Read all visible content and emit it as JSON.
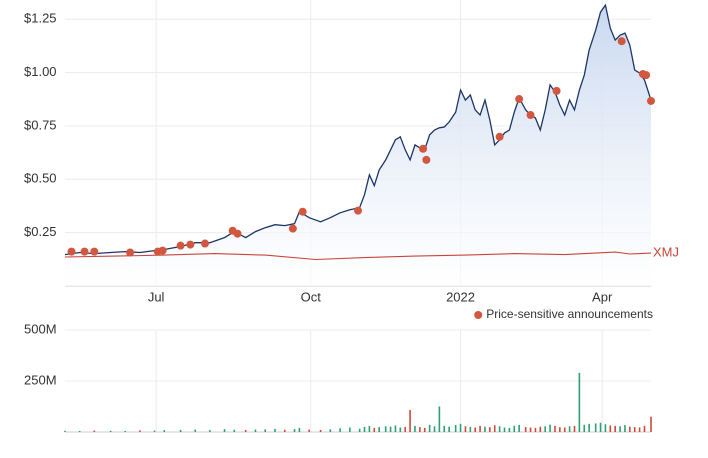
{
  "chart_data": [
    {
      "type": "line",
      "xlim": [
        0,
        360
      ],
      "xticks": [
        {
          "value": 56,
          "label": "Jul"
        },
        {
          "value": 151,
          "label": "Oct"
        },
        {
          "value": 243,
          "label": "2022"
        },
        {
          "value": 330,
          "label": "Apr"
        }
      ],
      "ylim": [
        0,
        1.34
      ],
      "yticks": [
        {
          "value": 0.25,
          "label": "$0.25"
        },
        {
          "value": 0.5,
          "label": "$0.50"
        },
        {
          "value": 0.75,
          "label": "$0.75"
        },
        {
          "value": 1.0,
          "label": "$1.00"
        },
        {
          "value": 1.25,
          "label": "$1.25"
        }
      ],
      "grid": true,
      "legend": "bottom-right",
      "series": [
        {
          "type": "area",
          "color": "#1d3566",
          "fill": "#c6d6ef",
          "x": [
            0,
            9,
            18,
            28,
            37,
            46,
            55,
            61,
            71,
            80,
            89,
            98,
            104,
            111,
            117,
            123,
            129,
            135,
            141,
            144,
            150,
            157,
            163,
            169,
            175,
            181,
            184,
            187,
            190,
            193,
            197,
            200,
            203,
            206,
            209,
            212,
            215,
            218,
            221,
            224,
            227,
            230,
            233,
            236,
            240,
            243,
            246,
            249,
            252,
            255,
            258,
            261,
            264,
            267,
            270,
            273,
            276,
            279,
            283,
            286,
            289,
            292,
            295,
            298,
            301,
            304,
            307,
            310,
            313,
            316,
            319,
            322,
            326,
            329,
            332,
            335,
            338,
            341,
            344,
            347,
            350,
            353,
            356,
            360
          ],
          "values": [
            0.147,
            0.157,
            0.152,
            0.157,
            0.161,
            0.157,
            0.166,
            0.171,
            0.185,
            0.203,
            0.203,
            0.227,
            0.255,
            0.227,
            0.255,
            0.273,
            0.287,
            0.283,
            0.292,
            0.348,
            0.32,
            0.301,
            0.32,
            0.343,
            0.357,
            0.367,
            0.428,
            0.521,
            0.47,
            0.544,
            0.591,
            0.638,
            0.685,
            0.699,
            0.638,
            0.591,
            0.661,
            0.647,
            0.638,
            0.708,
            0.731,
            0.741,
            0.745,
            0.769,
            0.815,
            0.918,
            0.871,
            0.895,
            0.825,
            0.801,
            0.871,
            0.778,
            0.661,
            0.685,
            0.717,
            0.731,
            0.815,
            0.881,
            0.825,
            0.801,
            0.787,
            0.731,
            0.825,
            0.942,
            0.909,
            0.848,
            0.801,
            0.871,
            0.825,
            0.918,
            0.988,
            1.105,
            1.199,
            1.283,
            1.316,
            1.208,
            1.152,
            1.175,
            1.185,
            1.129,
            1.012,
            0.998,
            0.965,
            0.871
          ]
        },
        {
          "type": "line",
          "name": "XMJ",
          "color": "#c8463d",
          "x": [
            0,
            31,
            61,
            92,
            123,
            154,
            184,
            215,
            246,
            276,
            307,
            338,
            347,
            360
          ],
          "values": [
            0.136,
            0.14,
            0.145,
            0.152,
            0.145,
            0.124,
            0.133,
            0.14,
            0.145,
            0.152,
            0.147,
            0.159,
            0.15,
            0.154
          ]
        },
        {
          "type": "scatter",
          "name": "Price-sensitive announcements",
          "color": "#d2573f",
          "x": [
            4,
            12,
            18,
            40,
            57,
            60,
            71,
            77,
            86,
            103,
            106,
            140,
            146,
            180,
            220,
            222,
            267,
            279,
            286,
            302,
            342,
            355,
            357,
            360
          ],
          "values": [
            0.161,
            0.161,
            0.161,
            0.157,
            0.161,
            0.166,
            0.189,
            0.194,
            0.199,
            0.259,
            0.245,
            0.269,
            0.348,
            0.353,
            0.643,
            0.591,
            0.699,
            0.876,
            0.801,
            0.914,
            1.147,
            0.993,
            0.988,
            0.867
          ]
        }
      ]
    },
    {
      "type": "bar",
      "xlim": [
        0,
        360
      ],
      "xticks": [
        56,
        151,
        243,
        330
      ],
      "ylim": [
        0,
        500000000
      ],
      "yticks": [
        {
          "value": 250000000,
          "label": "250M"
        },
        {
          "value": 500000000,
          "label": "500M"
        }
      ],
      "grid": true,
      "up_color": "#2f9e74",
      "down_color": "#cc4b3c",
      "x": [
        0,
        9,
        18,
        28,
        37,
        46,
        55,
        61,
        71,
        80,
        89,
        98,
        104,
        111,
        117,
        123,
        129,
        135,
        141,
        144,
        150,
        157,
        163,
        169,
        175,
        181,
        184,
        187,
        190,
        193,
        197,
        200,
        203,
        206,
        209,
        212,
        215,
        218,
        221,
        224,
        227,
        230,
        233,
        236,
        240,
        243,
        246,
        249,
        252,
        255,
        258,
        261,
        264,
        267,
        270,
        273,
        276,
        279,
        283,
        286,
        289,
        292,
        295,
        298,
        301,
        304,
        307,
        310,
        313,
        316,
        319,
        322,
        326,
        329,
        332,
        335,
        338,
        341,
        344,
        347,
        350,
        353,
        356,
        360
      ],
      "values": [
        6000000,
        5000000,
        7000000,
        6000000,
        5000000,
        8000000,
        7000000,
        9000000,
        10000000,
        12000000,
        9000000,
        14000000,
        11000000,
        10000000,
        12000000,
        13000000,
        15000000,
        11000000,
        14000000,
        20000000,
        12000000,
        10000000,
        13000000,
        18000000,
        22000000,
        16000000,
        25000000,
        30000000,
        20000000,
        24000000,
        28000000,
        26000000,
        32000000,
        22000000,
        25000000,
        108000000,
        30000000,
        24000000,
        20000000,
        35000000,
        28000000,
        125000000,
        30000000,
        26000000,
        34000000,
        40000000,
        28000000,
        25000000,
        22000000,
        30000000,
        26000000,
        24000000,
        33000000,
        28000000,
        22000000,
        20000000,
        30000000,
        35000000,
        24000000,
        22000000,
        20000000,
        26000000,
        28000000,
        36000000,
        30000000,
        24000000,
        22000000,
        28000000,
        30000000,
        290000000,
        35000000,
        40000000,
        42000000,
        45000000,
        38000000,
        32000000,
        30000000,
        28000000,
        34000000,
        26000000,
        24000000,
        22000000,
        30000000,
        75000000
      ]
    }
  ]
}
